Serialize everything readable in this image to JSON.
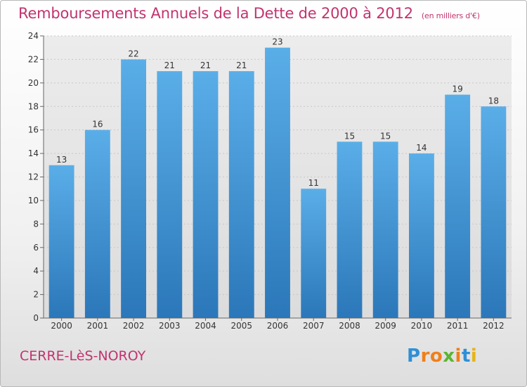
{
  "title": "Remboursements Annuels de la Dette de 2000 à 2012",
  "subtitle": "(en milliers d'€)",
  "location": "CERRE-LèS-NOROY",
  "brand": {
    "letters": [
      "P",
      "r",
      "o",
      "x",
      "i",
      "t",
      "i"
    ],
    "colors": [
      "#2f8fd6",
      "#f07f1a",
      "#f07f1a",
      "#5cb531",
      "#f07f1a",
      "#2f8fd6",
      "#e6b417"
    ]
  },
  "chart_data": {
    "type": "bar",
    "categories": [
      "2000",
      "2001",
      "2002",
      "2003",
      "2004",
      "2005",
      "2006",
      "2007",
      "2008",
      "2009",
      "2010",
      "2011",
      "2012"
    ],
    "values": [
      13,
      16,
      22,
      21,
      21,
      21,
      23,
      11,
      15,
      15,
      14,
      19,
      18
    ],
    "ylim": [
      0,
      24
    ],
    "yticks": [
      0,
      2,
      4,
      6,
      8,
      10,
      12,
      14,
      16,
      18,
      20,
      22,
      24
    ],
    "grid": true,
    "bar_color_top": "#5aaee8",
    "bar_color_bottom": "#2b77b9"
  }
}
